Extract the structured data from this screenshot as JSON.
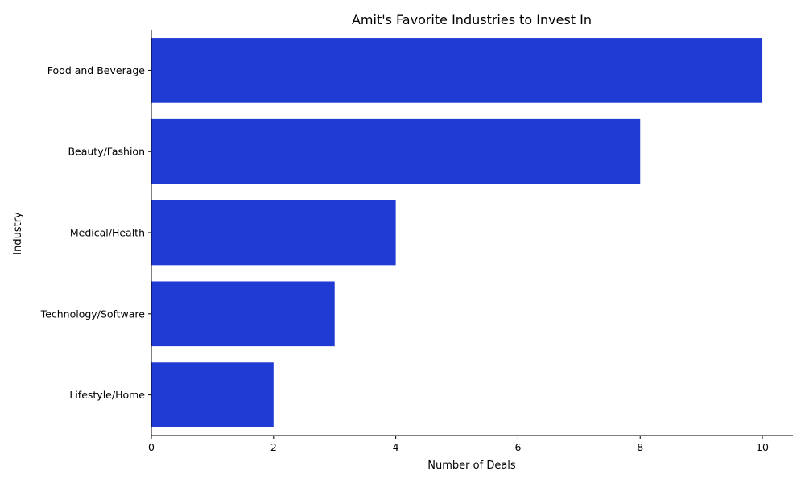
{
  "chart_data": {
    "type": "bar",
    "orientation": "horizontal",
    "title": "Amit's Favorite Industries to Invest In",
    "xlabel": "Number of Deals",
    "ylabel": "Industry",
    "categories": [
      "Food and Beverage",
      "Beauty/Fashion",
      "Medical/Health",
      "Technology/Software",
      "Lifestyle/Home"
    ],
    "values": [
      10,
      8,
      4,
      3,
      2
    ],
    "xlim": [
      0,
      10.5
    ],
    "xticks": [
      0,
      2,
      4,
      6,
      8,
      10
    ],
    "bar_color": "#1f3bd3",
    "grid": false,
    "legend": "none"
  }
}
